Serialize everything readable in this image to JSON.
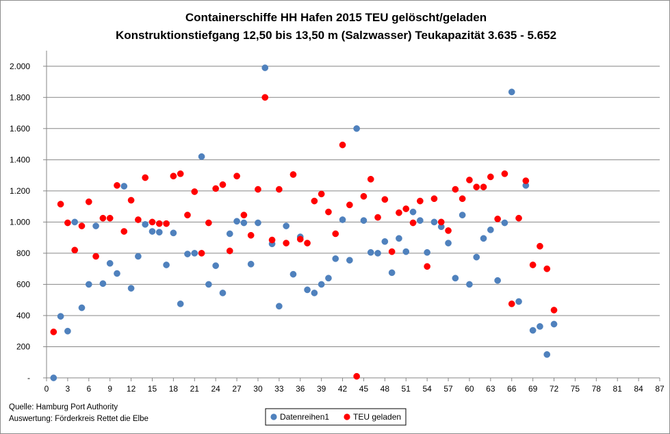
{
  "chart_data": {
    "type": "scatter",
    "title": "Containerschiffe HH Hafen 2015 TEU gelöscht/geladen",
    "subtitle": "Konstruktionstiefgang  12,50 bis 13,50 m (Salzwasser)   Teukapazität  3.635 - 5.652",
    "xlabel": "",
    "ylabel": "",
    "xlim": [
      0,
      87
    ],
    "ylim": [
      0,
      2100
    ],
    "x_ticks": [
      0,
      3,
      6,
      9,
      12,
      15,
      18,
      21,
      24,
      27,
      30,
      33,
      36,
      39,
      42,
      45,
      48,
      51,
      54,
      57,
      60,
      63,
      66,
      69,
      72,
      75,
      78,
      81,
      84,
      87
    ],
    "x_tick_labels": [
      "0",
      "3",
      "6",
      "9",
      "12",
      "15",
      "18",
      "21",
      "24",
      "27",
      "30",
      "33",
      "36",
      "39",
      "42",
      "45",
      "48",
      "51",
      "54",
      "57",
      "60",
      "63",
      "66",
      "69",
      "72",
      "75",
      "78",
      "81",
      "84",
      "87"
    ],
    "y_ticks": [
      0,
      200,
      400,
      600,
      800,
      1000,
      1200,
      1400,
      1600,
      1800,
      2000
    ],
    "y_tick_labels": [
      "-",
      "200",
      "400",
      "600",
      "800",
      "1.000",
      "1.200",
      "1.400",
      "1.600",
      "1.800",
      "2.000"
    ],
    "grid": "horizontal",
    "legend_position": "bottom",
    "series": [
      {
        "name": "Datenreihen1",
        "color": "#4f81bd",
        "x": [
          1,
          2,
          3,
          4,
          5,
          6,
          7,
          8,
          9,
          10,
          11,
          12,
          13,
          14,
          15,
          16,
          17,
          18,
          19,
          20,
          21,
          22,
          23,
          24,
          25,
          26,
          27,
          28,
          29,
          30,
          31,
          32,
          33,
          34,
          35,
          36,
          37,
          38,
          39,
          40,
          41,
          42,
          43,
          44,
          45,
          46,
          47,
          48,
          49,
          50,
          51,
          52,
          53,
          54,
          55,
          56,
          57,
          58,
          59,
          60,
          61,
          62,
          63,
          64,
          65,
          66,
          67,
          68,
          69,
          70,
          71,
          72
        ],
        "y": [
          0,
          395,
          300,
          1000,
          450,
          600,
          975,
          605,
          735,
          670,
          1230,
          575,
          780,
          985,
          940,
          935,
          725,
          930,
          475,
          795,
          800,
          1420,
          600,
          720,
          545,
          925,
          1005,
          995,
          730,
          995,
          1990,
          860,
          460,
          975,
          665,
          905,
          565,
          545,
          600,
          640,
          765,
          1015,
          755,
          1600,
          1010,
          805,
          800,
          875,
          675,
          895,
          810,
          1065,
          1010,
          805,
          1000,
          970,
          865,
          640,
          1045,
          600,
          775,
          895,
          950,
          625,
          995,
          1835,
          490,
          1235,
          305,
          330,
          150,
          345
        ]
      },
      {
        "name": "TEU geladen",
        "color": "#ff0000",
        "x": [
          1,
          2,
          3,
          4,
          5,
          6,
          7,
          8,
          9,
          10,
          11,
          12,
          13,
          14,
          15,
          16,
          17,
          18,
          19,
          20,
          21,
          22,
          23,
          24,
          25,
          26,
          27,
          28,
          29,
          30,
          31,
          32,
          33,
          34,
          35,
          36,
          37,
          38,
          39,
          40,
          41,
          42,
          43,
          44,
          45,
          46,
          47,
          48,
          49,
          50,
          51,
          52,
          53,
          54,
          55,
          56,
          57,
          58,
          59,
          60,
          61,
          62,
          63,
          64,
          65,
          66,
          67,
          68,
          69,
          70,
          71,
          72
        ],
        "y": [
          295,
          1115,
          995,
          820,
          975,
          1130,
          780,
          1025,
          1025,
          1235,
          940,
          1140,
          1015,
          1285,
          1000,
          990,
          990,
          1295,
          1310,
          1045,
          1195,
          800,
          995,
          1215,
          1240,
          815,
          1295,
          1045,
          915,
          1210,
          1800,
          885,
          1210,
          865,
          1305,
          890,
          865,
          1135,
          1180,
          1065,
          925,
          1495,
          1110,
          10,
          1165,
          1275,
          1030,
          1145,
          810,
          1060,
          1085,
          995,
          1135,
          715,
          1150,
          1000,
          945,
          1210,
          1150,
          1270,
          1225,
          1225,
          1290,
          1020,
          1310,
          475,
          1025,
          1265,
          725,
          845,
          700,
          435
        ]
      }
    ]
  },
  "footer": {
    "source": "Quelle: Hamburg Port Authority",
    "analysis": "Auswertung: Förderkreis Rettet die Elbe"
  }
}
